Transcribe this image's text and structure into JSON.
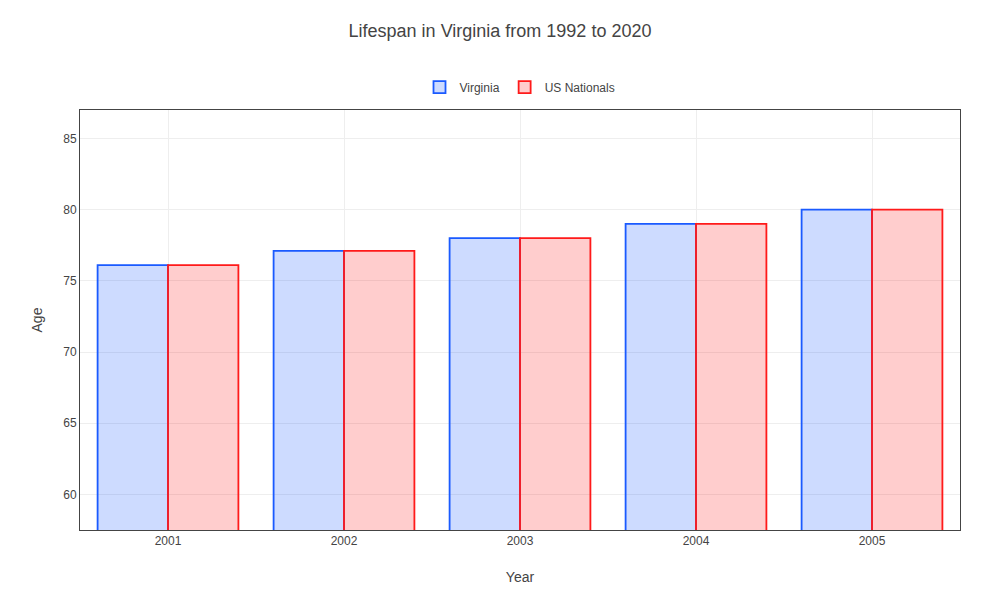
{
  "chart_data": {
    "type": "bar",
    "title": "Lifespan in Virginia from 1992 to 2020",
    "xlabel": "Year",
    "ylabel": "Age",
    "categories": [
      "2001",
      "2002",
      "2003",
      "2004",
      "2005"
    ],
    "series": [
      {
        "name": "Virginia",
        "color": "#1a5aff",
        "values": [
          76.1,
          77.1,
          78.0,
          79.0,
          80.0
        ]
      },
      {
        "name": "US Nationals",
        "color": "#ff1a1a",
        "values": [
          76.1,
          77.1,
          78.0,
          79.0,
          80.0
        ]
      }
    ],
    "ylim": [
      57.5,
      87
    ],
    "yticks": [
      60,
      65,
      70,
      75,
      80,
      85
    ],
    "grid": true,
    "legend": "upper center"
  }
}
